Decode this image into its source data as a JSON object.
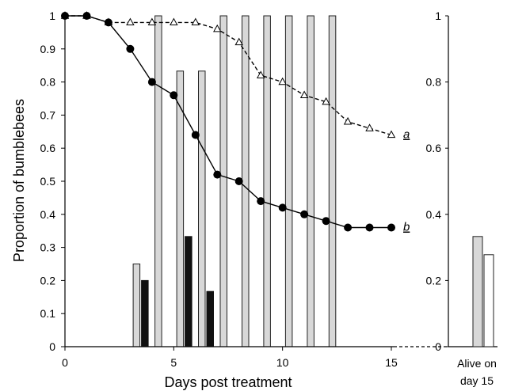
{
  "chart_data": {
    "type": "line",
    "xlabel": "Days post treatment",
    "ylabel": "Proportion of bumblebees",
    "xlim": [
      0,
      16
    ],
    "ylim": [
      0,
      1
    ],
    "x_ticks": [
      0,
      5,
      10,
      15
    ],
    "y_ticks": [
      0,
      0.1,
      0.2,
      0.3,
      0.4,
      0.5,
      0.6,
      0.7,
      0.8,
      0.9,
      1
    ],
    "y_tick_labels": [
      "0",
      "0.1",
      "0.2",
      "0.3",
      "0.4",
      "0.5",
      "0.6",
      "0.7",
      "0.8",
      "0.9",
      "1"
    ],
    "grid": false,
    "series": [
      {
        "label": "a",
        "style": "dashed",
        "marker": "open-triangle",
        "color": "#000000",
        "x": [
          0,
          1,
          2,
          3,
          4,
          5,
          6,
          7,
          8,
          9,
          10,
          11,
          12,
          13,
          14,
          15
        ],
        "y": [
          1.0,
          1.0,
          0.98,
          0.98,
          0.98,
          0.98,
          0.98,
          0.96,
          0.92,
          0.82,
          0.8,
          0.76,
          0.74,
          0.68,
          0.66,
          0.64
        ]
      },
      {
        "label": "b",
        "style": "solid",
        "marker": "filled-circle",
        "color": "#000000",
        "x": [
          0,
          1,
          2,
          3,
          4,
          5,
          6,
          7,
          8,
          9,
          10,
          11,
          12,
          13,
          14,
          15
        ],
        "y": [
          1.0,
          1.0,
          0.98,
          0.9,
          0.8,
          0.76,
          0.64,
          0.52,
          0.5,
          0.44,
          0.42,
          0.4,
          0.38,
          0.36,
          0.36,
          0.36
        ]
      }
    ],
    "bars": {
      "grey_color": "#d8d8d8",
      "black_color": "#111111",
      "grey": [
        {
          "x": 3.5,
          "value": 0.25
        },
        {
          "x": 4.5,
          "value": 1.0
        },
        {
          "x": 5.5,
          "value": 0.833
        },
        {
          "x": 6.5,
          "value": 0.833
        },
        {
          "x": 7.5,
          "value": 1.0
        },
        {
          "x": 8.5,
          "value": 1.0
        },
        {
          "x": 9.5,
          "value": 1.0
        },
        {
          "x": 10.5,
          "value": 1.0
        },
        {
          "x": 11.5,
          "value": 1.0
        },
        {
          "x": 12.5,
          "value": 1.0
        }
      ],
      "black": [
        {
          "x": 3.5,
          "value": 0.2
        },
        {
          "x": 5.5,
          "value": 0.333
        },
        {
          "x": 6.5,
          "value": 0.167
        }
      ]
    },
    "secondary_chart": {
      "type": "bar",
      "categories": [
        "Alive on day 15"
      ],
      "category_lines": [
        "Alive on",
        "day 15"
      ],
      "ylim": [
        0,
        1
      ],
      "y_ticks": [
        0,
        0.2,
        0.4,
        0.6,
        0.8,
        1
      ],
      "y_tick_labels": [
        "0",
        "0.2",
        "0.4",
        "0.6",
        "0.8",
        "1"
      ],
      "series": [
        {
          "color": "#d8d8d8",
          "values": [
            0.333
          ]
        },
        {
          "color": "#ffffff",
          "values": [
            0.278
          ]
        }
      ]
    }
  }
}
